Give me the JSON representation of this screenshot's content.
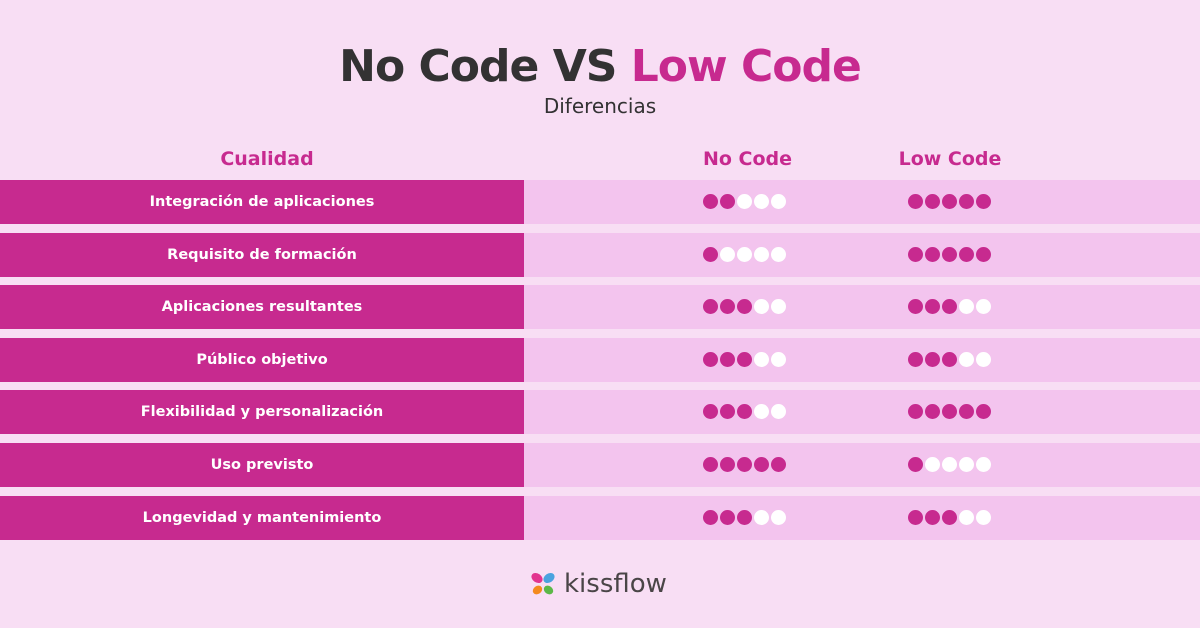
{
  "header": {
    "title_part1": "No Code VS",
    "title_part2": "Low Code",
    "subtitle": "Diferencias"
  },
  "columns": {
    "quality": "Cualidad",
    "no_code": "No Code",
    "low_code": "Low Code"
  },
  "rating_max": 5,
  "rows": [
    {
      "label": "Integración de aplicaciones",
      "no_code": 2,
      "low_code": 5
    },
    {
      "label": "Requisito de formación",
      "no_code": 1,
      "low_code": 5
    },
    {
      "label": "Aplicaciones resultantes",
      "no_code": 3,
      "low_code": 3
    },
    {
      "label": "Público objetivo",
      "no_code": 3,
      "low_code": 3
    },
    {
      "label": "Flexibilidad y personalización",
      "no_code": 3,
      "low_code": 5
    },
    {
      "label": "Uso previsto",
      "no_code": 5,
      "low_code": 1
    },
    {
      "label": "Longevidad y mantenimiento",
      "no_code": 3,
      "low_code": 3
    }
  ],
  "brand": {
    "name": "kissflow",
    "logo_icon": "butterfly-petals-icon",
    "logo_colors": [
      "#e2348f",
      "#4aa3df",
      "#f48a1e",
      "#5cb848"
    ]
  },
  "colors": {
    "background": "#f8def4",
    "accent": "#c72a8f",
    "row_bg": "#f3c4ee",
    "dot_filled": "#c72a8f",
    "dot_empty": "#ffffff",
    "title_dark": "#333233"
  }
}
